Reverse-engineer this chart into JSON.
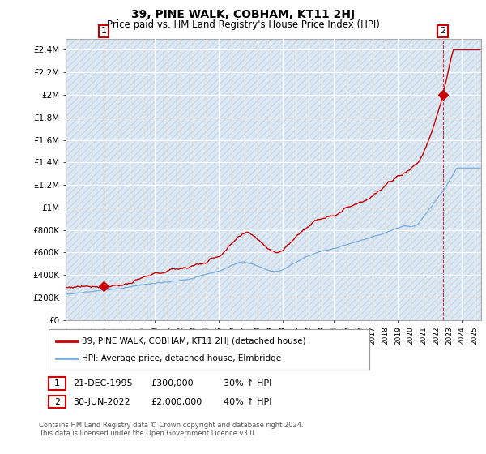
{
  "title": "39, PINE WALK, COBHAM, KT11 2HJ",
  "subtitle": "Price paid vs. HM Land Registry's House Price Index (HPI)",
  "ylim": [
    0,
    2500000
  ],
  "yticks": [
    0,
    200000,
    400000,
    600000,
    800000,
    1000000,
    1200000,
    1400000,
    1600000,
    1800000,
    2000000,
    2200000,
    2400000
  ],
  "ytick_labels": [
    "£0",
    "£200K",
    "£400K",
    "£600K",
    "£800K",
    "£1M",
    "£1.2M",
    "£1.4M",
    "£1.6M",
    "£1.8M",
    "£2M",
    "£2.2M",
    "£2.4M"
  ],
  "xlim_start": 1993.0,
  "xlim_end": 2025.5,
  "sale1_x": 1995.97,
  "sale1_y": 300000,
  "sale1_label": "1",
  "sale2_x": 2022.5,
  "sale2_y": 2000000,
  "sale2_label": "2",
  "sale_color": "#cc0000",
  "hpi_color": "#7aade0",
  "annotation1_date": "21-DEC-1995",
  "annotation1_price": "£300,000",
  "annotation1_hpi": "30% ↑ HPI",
  "annotation2_date": "30-JUN-2022",
  "annotation2_price": "£2,000,000",
  "annotation2_hpi": "40% ↑ HPI",
  "legend_label1": "39, PINE WALK, COBHAM, KT11 2HJ (detached house)",
  "legend_label2": "HPI: Average price, detached house, Elmbridge",
  "copyright": "Contains HM Land Registry data © Crown copyright and database right 2024.\nThis data is licensed under the Open Government Licence v3.0.",
  "background_color": "#ffffff",
  "plot_bg_color": "#dce9f5",
  "grid_color": "#ffffff",
  "hatch_color": "#c0cfe0"
}
